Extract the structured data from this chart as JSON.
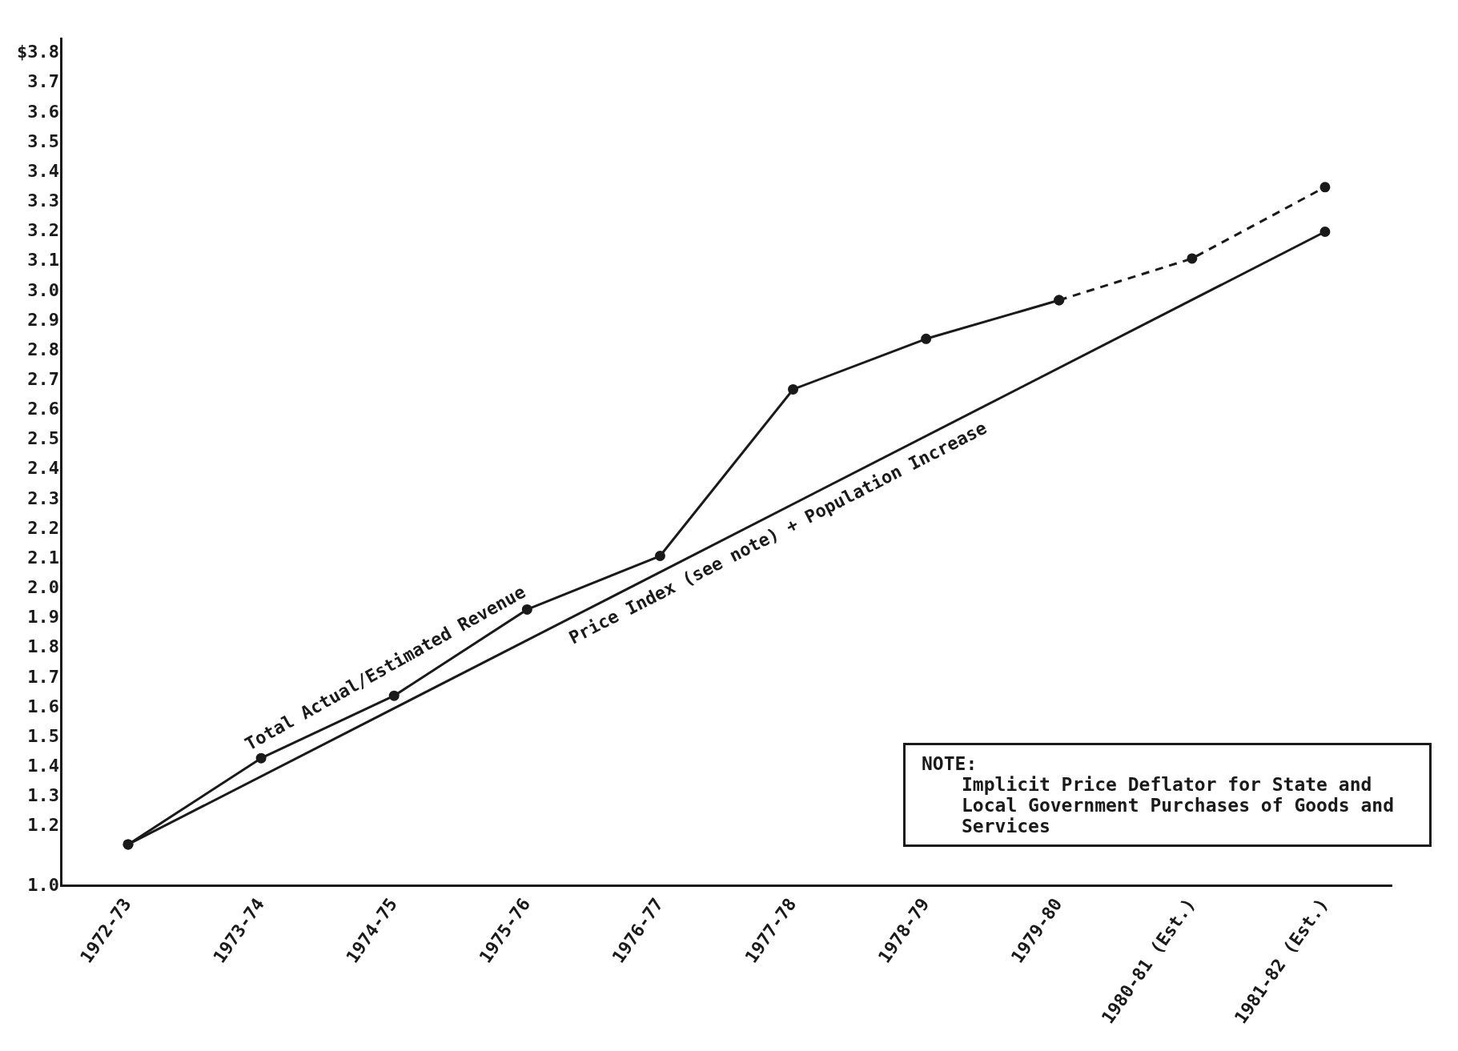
{
  "chart_data": {
    "type": "line",
    "categories": [
      "1972-73",
      "1973-74",
      "1974-75",
      "1975-76",
      "1976-77",
      "1977-78",
      "1978-79",
      "1979-80",
      "1980-81 (Est.)",
      "1981-82 (Est.)"
    ],
    "series": [
      {
        "name": "Total Actual/Estimated Revenue",
        "color": "#1a1a1a",
        "line_style": "solid",
        "values": [
          1.14,
          1.43,
          1.64,
          1.93,
          2.11,
          2.67,
          2.84,
          2.97,
          null,
          null
        ]
      },
      {
        "color": "#1a1a1a",
        "line_style": "dashed",
        "values": [
          null,
          null,
          null,
          null,
          null,
          null,
          null,
          2.97,
          3.11,
          3.35
        ]
      },
      {
        "name": "Price Index (see note) + Population Increase",
        "color": "#1a1a1a",
        "line_style": "solid",
        "values": [
          1.14,
          null,
          null,
          null,
          null,
          null,
          null,
          null,
          null,
          3.2
        ]
      }
    ],
    "ylim": [
      1.0,
      3.85
    ],
    "yticks": [
      {
        "value": 1.0,
        "label": "1.0"
      },
      {
        "value": 1.2,
        "label": "1.2"
      },
      1.3,
      1.4,
      1.5,
      1.6,
      1.7,
      1.8,
      1.9,
      {
        "value": 2.0,
        "label": "2.0"
      },
      2.1,
      2.2,
      2.3,
      2.4,
      2.5,
      2.6,
      2.7,
      2.8,
      2.9,
      {
        "value": 3.0,
        "label": "3.0"
      },
      3.1,
      3.2,
      3.3,
      3.4,
      3.5,
      3.6,
      3.7,
      {
        "value": 3.8,
        "label": "$3.8"
      }
    ],
    "grid": false,
    "legend": false,
    "marker": "circle",
    "annotations": [
      "NOTE:\nImplicit Price Deflator for State and Local Government Purchases of Goods and Services"
    ]
  }
}
